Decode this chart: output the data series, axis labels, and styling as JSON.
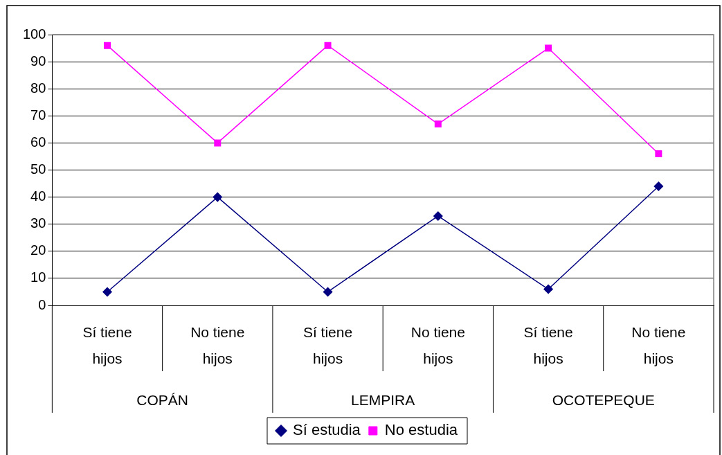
{
  "chart_data": {
    "type": "line",
    "categories": [
      "Sí tiene hijos",
      "No tiene hijos",
      "Sí tiene hijos",
      "No tiene hijos",
      "Sí tiene hijos",
      "No tiene hijos"
    ],
    "annotations": [
      "COPÁN",
      "LEMPIRA",
      "OCOTEPEQUE"
    ],
    "series": [
      {
        "name": "Sí estudia",
        "color": "#000080",
        "marker": "diamond",
        "values": [
          5,
          40,
          5,
          33,
          6,
          44
        ]
      },
      {
        "name": "No estudia",
        "color": "#ff00ff",
        "marker": "square",
        "values": [
          96,
          60,
          96,
          67,
          95,
          56
        ]
      }
    ],
    "ylim": [
      0,
      100
    ],
    "yticks": [
      0,
      10,
      20,
      30,
      40,
      50,
      60,
      70,
      80,
      90,
      100
    ],
    "grid": "y",
    "legend": "bottom"
  }
}
